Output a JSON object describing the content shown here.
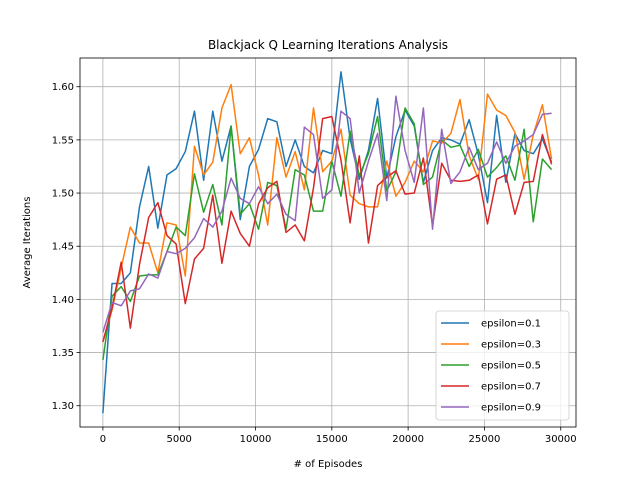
{
  "chart_data": {
    "type": "line",
    "title": "Blackjack Q Learning Iterations Analysis",
    "xlabel": "# of Episodes",
    "ylabel": "Average Iterations",
    "xlim": [
      -1500,
      31000
    ],
    "ylim": [
      1.28,
      1.627
    ],
    "xticks": [
      0,
      5000,
      10000,
      15000,
      20000,
      25000,
      30000
    ],
    "xtick_labels": [
      "0",
      "5000",
      "10000",
      "15000",
      "20000",
      "25000",
      "30000"
    ],
    "yticks": [
      1.3,
      1.35,
      1.4,
      1.45,
      1.5,
      1.55,
      1.6
    ],
    "ytick_labels": [
      "1.30",
      "1.35",
      "1.40",
      "1.45",
      "1.50",
      "1.55",
      "1.60"
    ],
    "grid": true,
    "legend_position": "lower-right",
    "x": [
      0,
      600,
      1200,
      1800,
      2400,
      3000,
      3600,
      4200,
      4800,
      5400,
      6000,
      6600,
      7200,
      7800,
      8400,
      9000,
      9600,
      10200,
      10800,
      11400,
      12000,
      12600,
      13200,
      13800,
      14400,
      15000,
      15600,
      16200,
      16800,
      17400,
      18000,
      18600,
      19200,
      19800,
      20400,
      21000,
      21600,
      22200,
      22800,
      23400,
      24000,
      24600,
      25200,
      25800,
      26400,
      27000,
      27600,
      28200,
      28800,
      29400
    ],
    "series": [
      {
        "name": "epsilon=0.1",
        "color": "#1f77b4",
        "values": [
          1.293,
          1.415,
          1.415,
          1.425,
          1.487,
          1.525,
          1.467,
          1.517,
          1.523,
          1.539,
          1.577,
          1.512,
          1.577,
          1.53,
          1.563,
          1.475,
          1.525,
          1.541,
          1.57,
          1.567,
          1.525,
          1.55,
          1.525,
          1.519,
          1.54,
          1.537,
          1.614,
          1.551,
          1.513,
          1.54,
          1.589,
          1.514,
          1.553,
          1.578,
          1.563,
          1.51,
          1.54,
          1.552,
          1.55,
          1.546,
          1.569,
          1.536,
          1.491,
          1.573,
          1.51,
          1.556,
          1.54,
          1.537,
          1.551,
          1.529
        ]
      },
      {
        "name": "epsilon=0.3",
        "color": "#ff7f0e",
        "values": [
          1.36,
          1.39,
          1.43,
          1.468,
          1.453,
          1.453,
          1.425,
          1.472,
          1.47,
          1.422,
          1.544,
          1.517,
          1.529,
          1.58,
          1.602,
          1.537,
          1.552,
          1.517,
          1.47,
          1.552,
          1.515,
          1.539,
          1.503,
          1.58,
          1.52,
          1.53,
          1.56,
          1.498,
          1.49,
          1.487,
          1.487,
          1.53,
          1.497,
          1.51,
          1.53,
          1.52,
          1.549,
          1.547,
          1.556,
          1.588,
          1.535,
          1.513,
          1.593,
          1.578,
          1.573,
          1.557,
          1.513,
          1.555,
          1.583,
          1.532
        ]
      },
      {
        "name": "epsilon=0.5",
        "color": "#2ca02c",
        "values": [
          1.343,
          1.403,
          1.412,
          1.398,
          1.422,
          1.423,
          1.423,
          1.445,
          1.468,
          1.46,
          1.518,
          1.482,
          1.508,
          1.47,
          1.563,
          1.48,
          1.49,
          1.466,
          1.51,
          1.507,
          1.466,
          1.522,
          1.517,
          1.483,
          1.483,
          1.53,
          1.497,
          1.558,
          1.516,
          1.537,
          1.572,
          1.502,
          1.52,
          1.58,
          1.565,
          1.508,
          1.515,
          1.55,
          1.543,
          1.545,
          1.525,
          1.541,
          1.515,
          1.524,
          1.535,
          1.512,
          1.56,
          1.473,
          1.532,
          1.522
        ]
      },
      {
        "name": "epsilon=0.7",
        "color": "#d62728",
        "values": [
          1.36,
          1.392,
          1.435,
          1.373,
          1.433,
          1.477,
          1.491,
          1.46,
          1.452,
          1.396,
          1.438,
          1.448,
          1.498,
          1.434,
          1.483,
          1.462,
          1.45,
          1.49,
          1.505,
          1.511,
          1.463,
          1.47,
          1.455,
          1.505,
          1.57,
          1.572,
          1.531,
          1.472,
          1.535,
          1.453,
          1.507,
          1.515,
          1.521,
          1.499,
          1.5,
          1.533,
          1.469,
          1.528,
          1.512,
          1.511,
          1.512,
          1.517,
          1.471,
          1.513,
          1.517,
          1.48,
          1.51,
          1.511,
          1.555,
          1.527
        ]
      },
      {
        "name": "epsilon=0.9",
        "color": "#9467bd",
        "values": [
          1.369,
          1.397,
          1.394,
          1.408,
          1.41,
          1.424,
          1.42,
          1.445,
          1.443,
          1.448,
          1.458,
          1.476,
          1.468,
          1.483,
          1.514,
          1.495,
          1.49,
          1.506,
          1.49,
          1.499,
          1.48,
          1.474,
          1.562,
          1.555,
          1.495,
          1.503,
          1.577,
          1.57,
          1.5,
          1.53,
          1.556,
          1.493,
          1.591,
          1.54,
          1.51,
          1.58,
          1.466,
          1.56,
          1.509,
          1.52,
          1.543,
          1.522,
          1.528,
          1.548,
          1.528,
          1.544,
          1.549,
          1.555,
          1.574,
          1.575
        ]
      }
    ]
  }
}
